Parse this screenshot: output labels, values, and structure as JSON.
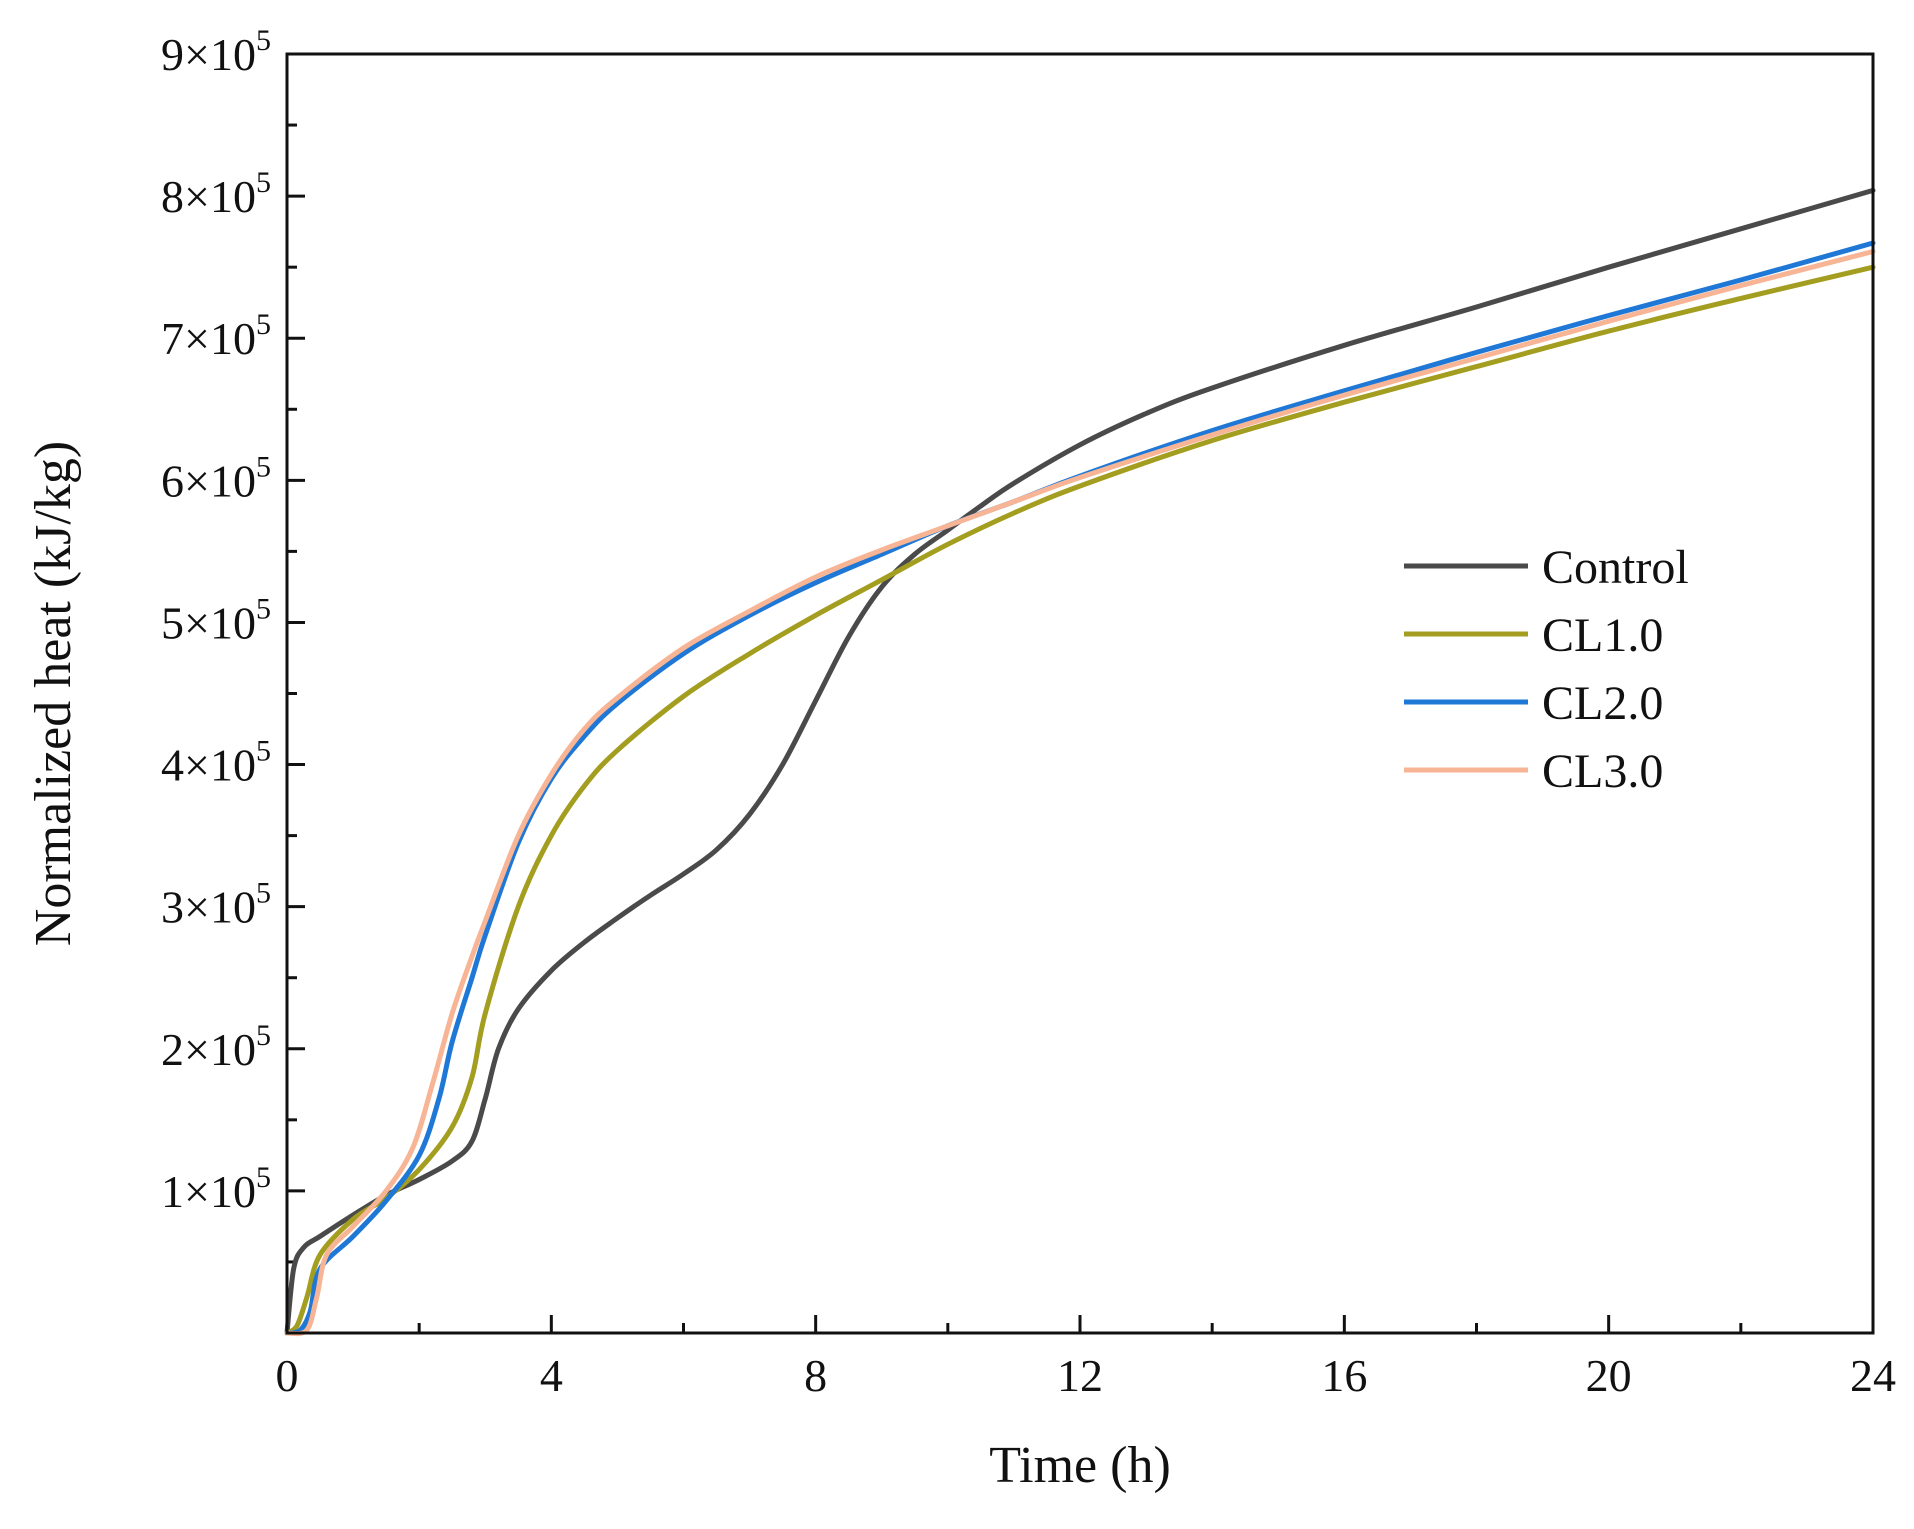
{
  "chart_data": {
    "type": "line",
    "title": "",
    "xlabel": "Time (h)",
    "ylabel": "Normalized heat (kJ/kg)",
    "xlim": [
      0,
      24
    ],
    "ylim": [
      0,
      900000
    ],
    "x_ticks": [
      0,
      4,
      8,
      12,
      16,
      20,
      24
    ],
    "x_tick_labels": [
      "0",
      "4",
      "8",
      "12",
      "16",
      "20",
      "24"
    ],
    "y_ticks": [
      100000,
      200000,
      300000,
      400000,
      500000,
      600000,
      700000,
      800000,
      900000
    ],
    "y_tick_labels": [
      {
        "mantissa": "1",
        "times": "×10",
        "exp": "5"
      },
      {
        "mantissa": "2",
        "times": "×10",
        "exp": "5"
      },
      {
        "mantissa": "3",
        "times": "×10",
        "exp": "5"
      },
      {
        "mantissa": "4",
        "times": "×10",
        "exp": "5"
      },
      {
        "mantissa": "5",
        "times": "×10",
        "exp": "5"
      },
      {
        "mantissa": "6",
        "times": "×10",
        "exp": "5"
      },
      {
        "mantissa": "7",
        "times": "×10",
        "exp": "5"
      },
      {
        "mantissa": "8",
        "times": "×10",
        "exp": "5"
      },
      {
        "mantissa": "9",
        "times": "×10",
        "exp": "5"
      }
    ],
    "grid": false,
    "legend_position": "right-middle",
    "series": [
      {
        "name": "Control",
        "color": "#4a4a4a",
        "x": [
          0,
          0.1,
          0.25,
          0.5,
          1,
          1.5,
          2,
          2.5,
          2.8,
          3,
          3.2,
          3.5,
          4,
          4.5,
          5,
          5.5,
          6,
          6.5,
          7,
          7.5,
          8,
          8.5,
          9,
          9.5,
          10,
          10.5,
          11,
          12,
          13,
          14,
          16,
          18,
          20,
          22,
          24
        ],
        "values": [
          0,
          45000,
          60000,
          68000,
          83000,
          97000,
          108000,
          121000,
          135000,
          165000,
          200000,
          228000,
          255000,
          275000,
          292000,
          308000,
          323000,
          340000,
          365000,
          400000,
          445000,
          490000,
          525000,
          548000,
          565000,
          582000,
          598000,
          625000,
          647000,
          665000,
          695000,
          722000,
          750000,
          777000,
          804000
        ]
      },
      {
        "name": "CL1.0",
        "color": "#a39d20",
        "x": [
          0,
          0.15,
          0.3,
          0.5,
          1,
          1.5,
          2,
          2.5,
          2.8,
          3,
          3.5,
          4,
          4.5,
          5,
          6,
          7,
          8,
          9,
          10,
          11,
          12,
          14,
          16,
          18,
          20,
          22,
          24
        ],
        "values": [
          0,
          5000,
          25000,
          55000,
          80000,
          95000,
          115000,
          145000,
          180000,
          225000,
          300000,
          350000,
          385000,
          410000,
          448000,
          478000,
          505000,
          530000,
          555000,
          577000,
          596000,
          628000,
          655000,
          680000,
          705000,
          728000,
          750000
        ]
      },
      {
        "name": "CL2.0",
        "color": "#1f78d6",
        "x": [
          0,
          0.2,
          0.35,
          0.5,
          1,
          1.5,
          2,
          2.3,
          2.5,
          2.8,
          3,
          3.5,
          4,
          4.5,
          5,
          6,
          7,
          8,
          9,
          10,
          11,
          12,
          14,
          16,
          18,
          20,
          22,
          24
        ],
        "values": [
          0,
          2000,
          15000,
          45000,
          68000,
          93000,
          125000,
          165000,
          205000,
          250000,
          280000,
          345000,
          390000,
          420000,
          443000,
          478000,
          505000,
          528000,
          548000,
          568000,
          585000,
          603000,
          635000,
          663000,
          690000,
          716000,
          741000,
          767000
        ]
      },
      {
        "name": "CL3.0",
        "color": "#f7b595",
        "x": [
          0,
          0.3,
          0.45,
          0.6,
          1,
          1.5,
          1.9,
          2.2,
          2.5,
          2.8,
          3,
          3.5,
          4,
          4.5,
          5,
          6,
          7,
          8,
          9,
          10,
          11,
          12,
          14,
          16,
          18,
          20,
          22,
          24
        ],
        "values": [
          0,
          2000,
          25000,
          55000,
          75000,
          100000,
          130000,
          175000,
          225000,
          265000,
          290000,
          350000,
          393000,
          425000,
          447000,
          482000,
          508000,
          532000,
          551000,
          568000,
          585000,
          602000,
          632000,
          660000,
          686000,
          712000,
          737000,
          761000
        ]
      }
    ]
  }
}
